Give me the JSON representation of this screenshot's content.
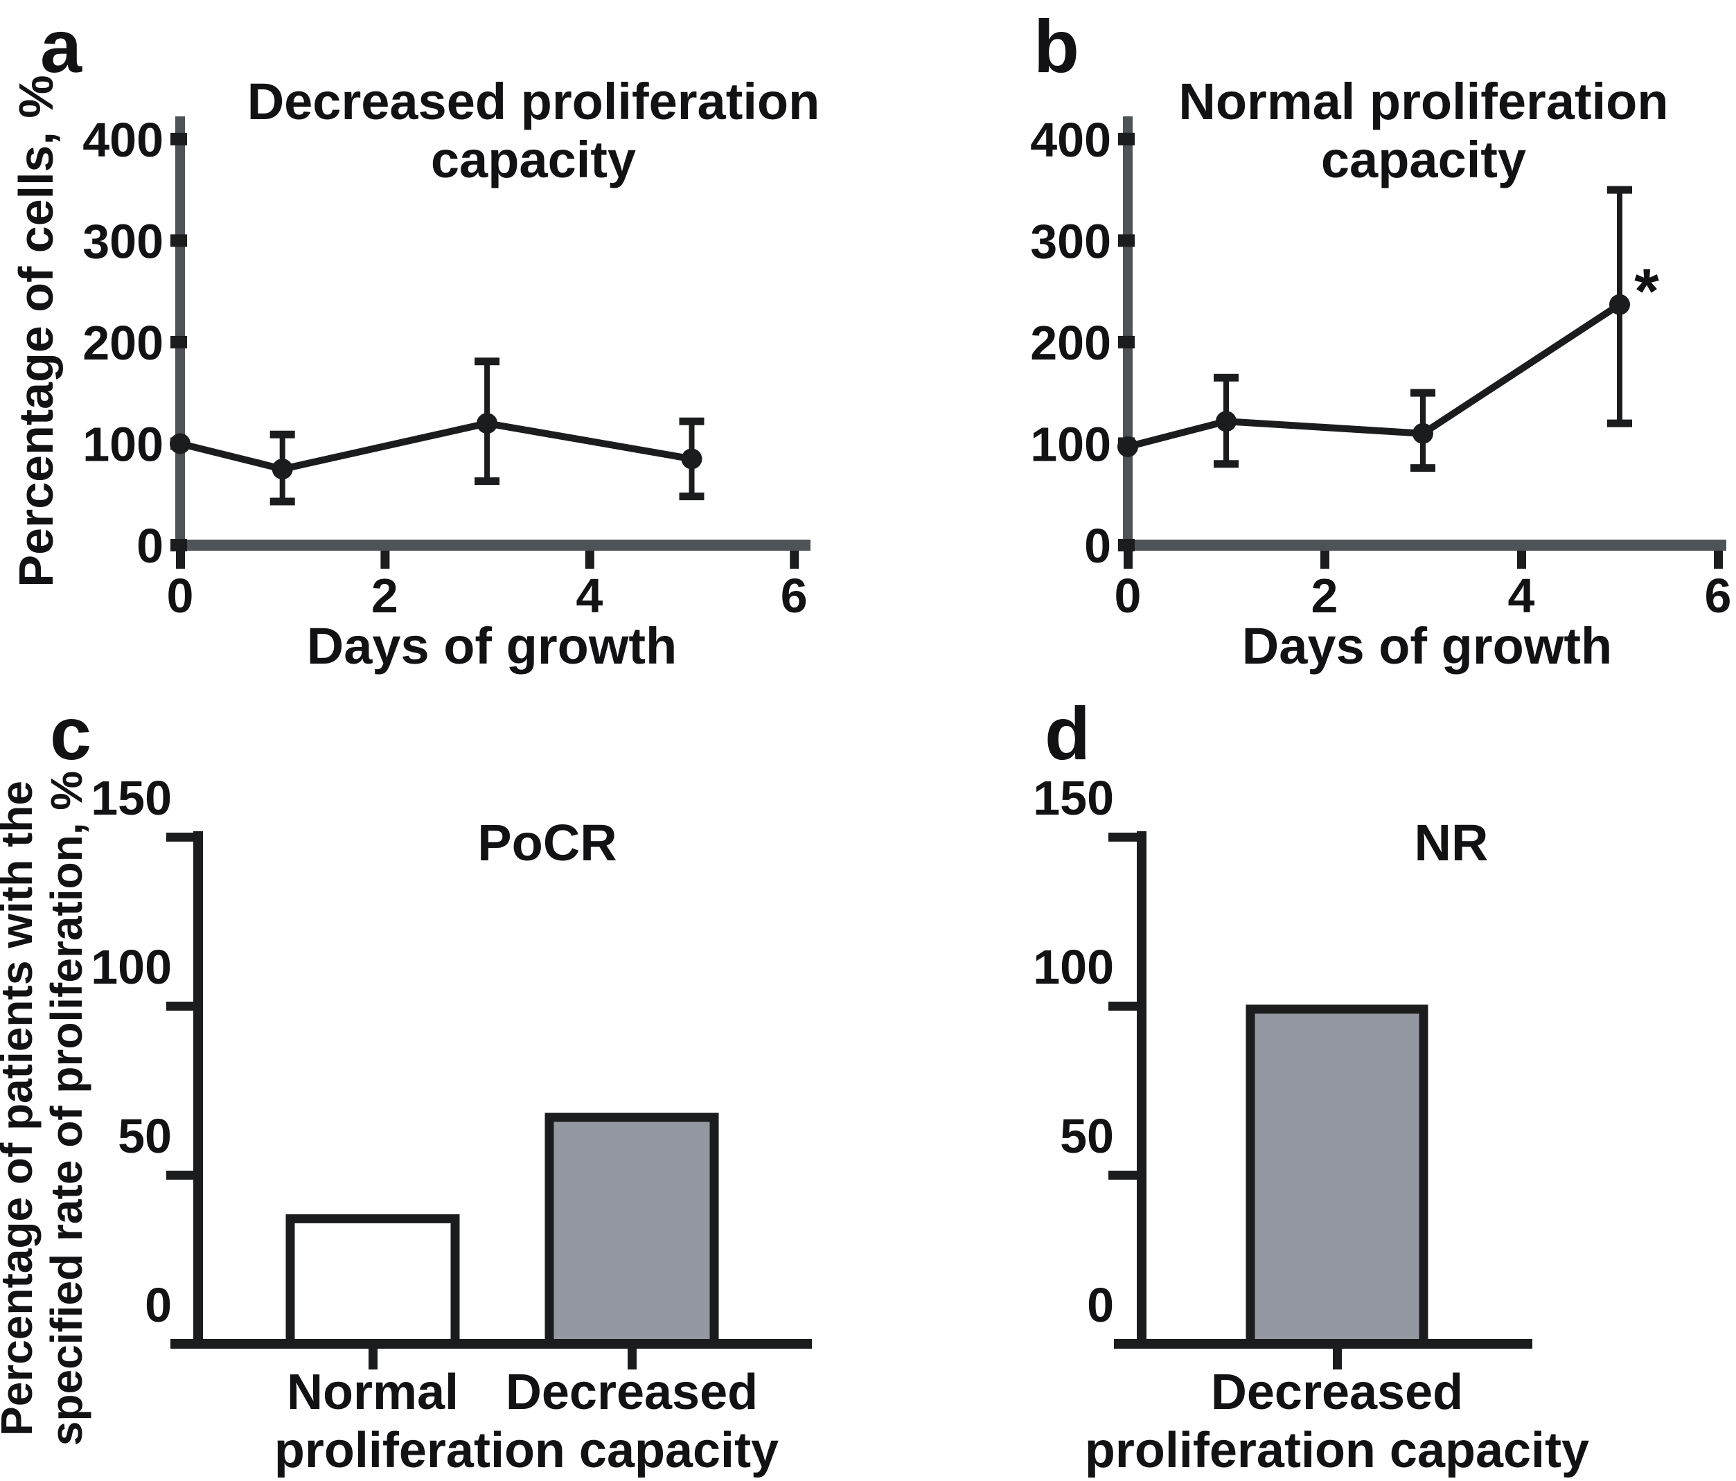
{
  "figure": {
    "background": "#ffffff",
    "text_color": "#121214",
    "axis_gray": "#4e5358",
    "mark_black": "#1b1c1e",
    "panels": [
      {
        "letter": "a",
        "title_line1": "Decreased proliferation",
        "title_line2": "capacity",
        "ylabel": "Percentage of cells, %",
        "xlabel": "Days of growth"
      },
      {
        "letter": "b",
        "title_line1": "Normal proliferation",
        "title_line2": "capacity",
        "xlabel": "Days of growth",
        "significance_marker": "*"
      },
      {
        "letter": "c",
        "title": "PoCR",
        "ylabel_line1": "Percentage of patients with the",
        "ylabel_line2": "specified rate of proliferation, %",
        "cat1": "Normal",
        "cat2": "Decreased",
        "cat_shared": "proliferation capacity"
      },
      {
        "letter": "d",
        "title": "NR",
        "cat1": "Decreased",
        "cat_shared": "proliferation capacity"
      }
    ]
  },
  "chart_data": [
    {
      "type": "line",
      "panel": "a",
      "title": "Decreased proliferation capacity",
      "xlabel": "Days of growth",
      "ylabel": "Percentage of cells, %",
      "xlim": [
        0,
        6
      ],
      "ylim": [
        0,
        400
      ],
      "xticks": [
        0,
        2,
        4,
        6
      ],
      "yticks": [
        0,
        100,
        200,
        300,
        400
      ],
      "grid": false,
      "legend": "none",
      "series": [
        {
          "name": "Decreased proliferation capacity",
          "x": [
            0,
            1,
            3,
            5
          ],
          "y": [
            100,
            75,
            120,
            85
          ],
          "err_low": [
            null,
            43,
            63,
            48
          ],
          "err_high": [
            null,
            109,
            181,
            122
          ]
        }
      ]
    },
    {
      "type": "line",
      "panel": "b",
      "title": "Normal proliferation capacity",
      "xlabel": "Days of growth",
      "ylabel": "Percentage of cells, %",
      "xlim": [
        0,
        6
      ],
      "ylim": [
        0,
        400
      ],
      "xticks": [
        0,
        2,
        4,
        6
      ],
      "yticks": [
        0,
        100,
        200,
        300,
        400
      ],
      "grid": false,
      "legend": "none",
      "series": [
        {
          "name": "Normal proliferation capacity",
          "x": [
            0,
            1,
            3,
            5
          ],
          "y": [
            97,
            122,
            110,
            237
          ],
          "err_low": [
            null,
            80,
            76,
            120
          ],
          "err_high": [
            null,
            165,
            150,
            350
          ]
        }
      ],
      "annotation": {
        "text": "*",
        "at_x": 5,
        "at_y": 265,
        "meaning": "statistically significant"
      }
    },
    {
      "type": "bar",
      "panel": "c",
      "title": "PoCR",
      "ylabel": "Percentage of patients with the specified rate of proliferation, %",
      "categories": [
        "Normal proliferation capacity",
        "Decreased proliferation capacity"
      ],
      "values": [
        37,
        67
      ],
      "bar_fills": [
        "#ffffff",
        "#9498a0"
      ],
      "ylim": [
        0,
        150
      ],
      "yticks": [
        0,
        50,
        100,
        150
      ],
      "grid": false,
      "legend": "none"
    },
    {
      "type": "bar",
      "panel": "d",
      "title": "NR",
      "categories": [
        "Decreased proliferation capacity"
      ],
      "values": [
        99
      ],
      "bar_fills": [
        "#9498a0"
      ],
      "ylim": [
        0,
        150
      ],
      "yticks": [
        0,
        50,
        100,
        150
      ],
      "grid": false,
      "legend": "none"
    }
  ]
}
